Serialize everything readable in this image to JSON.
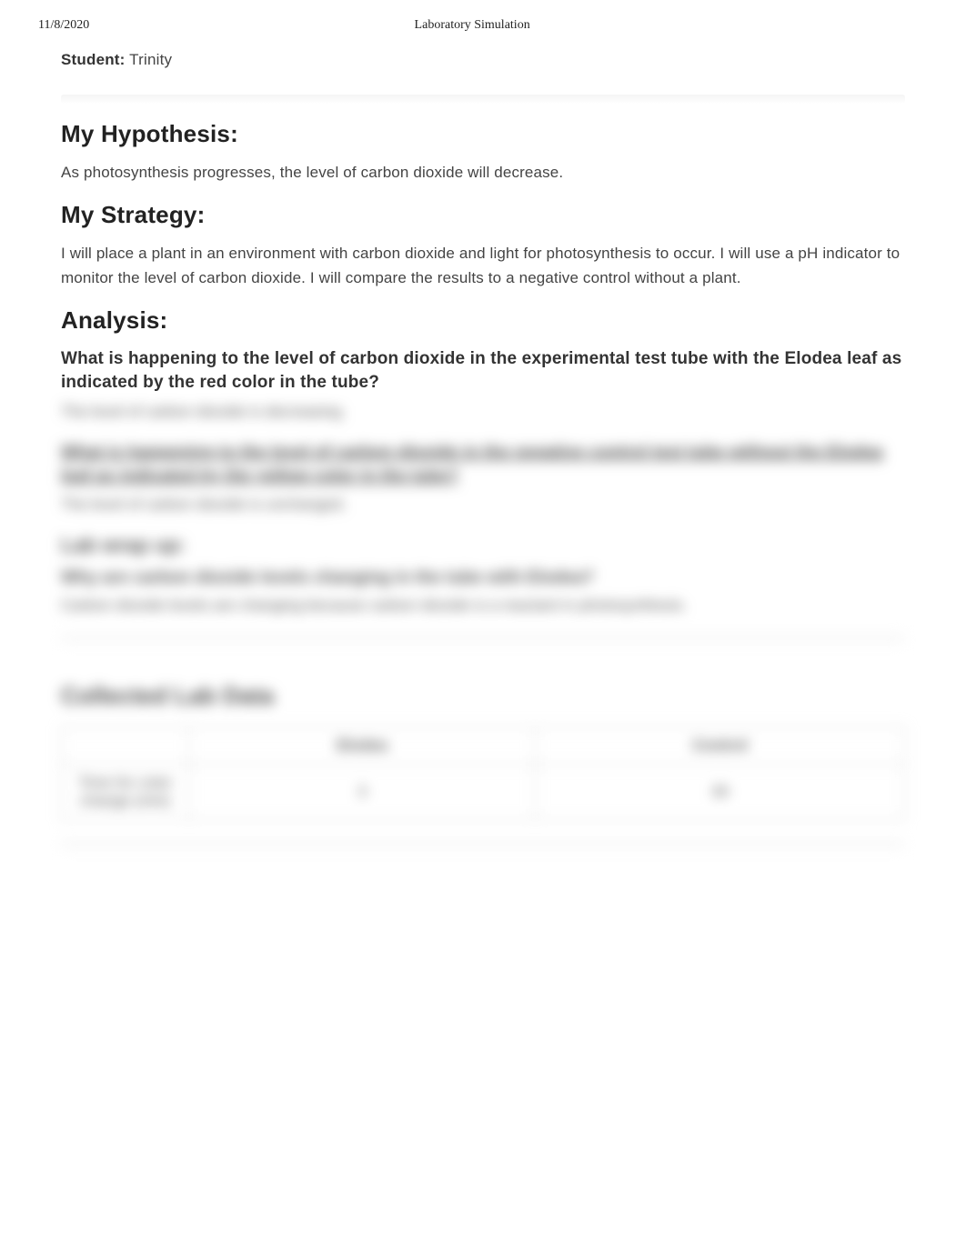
{
  "header": {
    "date": "11/8/2020",
    "title": "Laboratory Simulation"
  },
  "student": {
    "label": "Student:",
    "name": "Trinity"
  },
  "hypothesis": {
    "heading": "My Hypothesis:",
    "text": "As photosynthesis progresses, the level of carbon dioxide will decrease."
  },
  "strategy": {
    "heading": "My Strategy:",
    "text": "I will place a plant in an environment with carbon dioxide and light for photosynthesis to occur. I will use a pH indicator to monitor the level of carbon dioxide. I will compare the results to a negative control without a plant."
  },
  "analysis": {
    "heading": "Analysis:",
    "q1": "What is happening to the level of carbon dioxide in the experimental test tube with the Elodea leaf as indicated by the red color in the tube?",
    "a1": "The level of carbon dioxide is decreasing.",
    "q2": "What is happening to the level of carbon dioxide in the negative control test tube without the Elodea leaf as indicated by the yellow color in the tube?",
    "a2": "The level of carbon dioxide is unchanged."
  },
  "wrapup": {
    "heading": "Lab wrap up:",
    "q1": "Why are carbon dioxide levels changing in the tube with Elodea?",
    "a1": "Carbon dioxide levels are changing because carbon dioxide is a reactant in photosynthesis."
  },
  "collected": {
    "heading": "Collected Lab Data",
    "columns": [
      "",
      "Elodea",
      "Control"
    ],
    "rows": [
      [
        "Time for color change (min)",
        "3",
        "30"
      ]
    ]
  }
}
